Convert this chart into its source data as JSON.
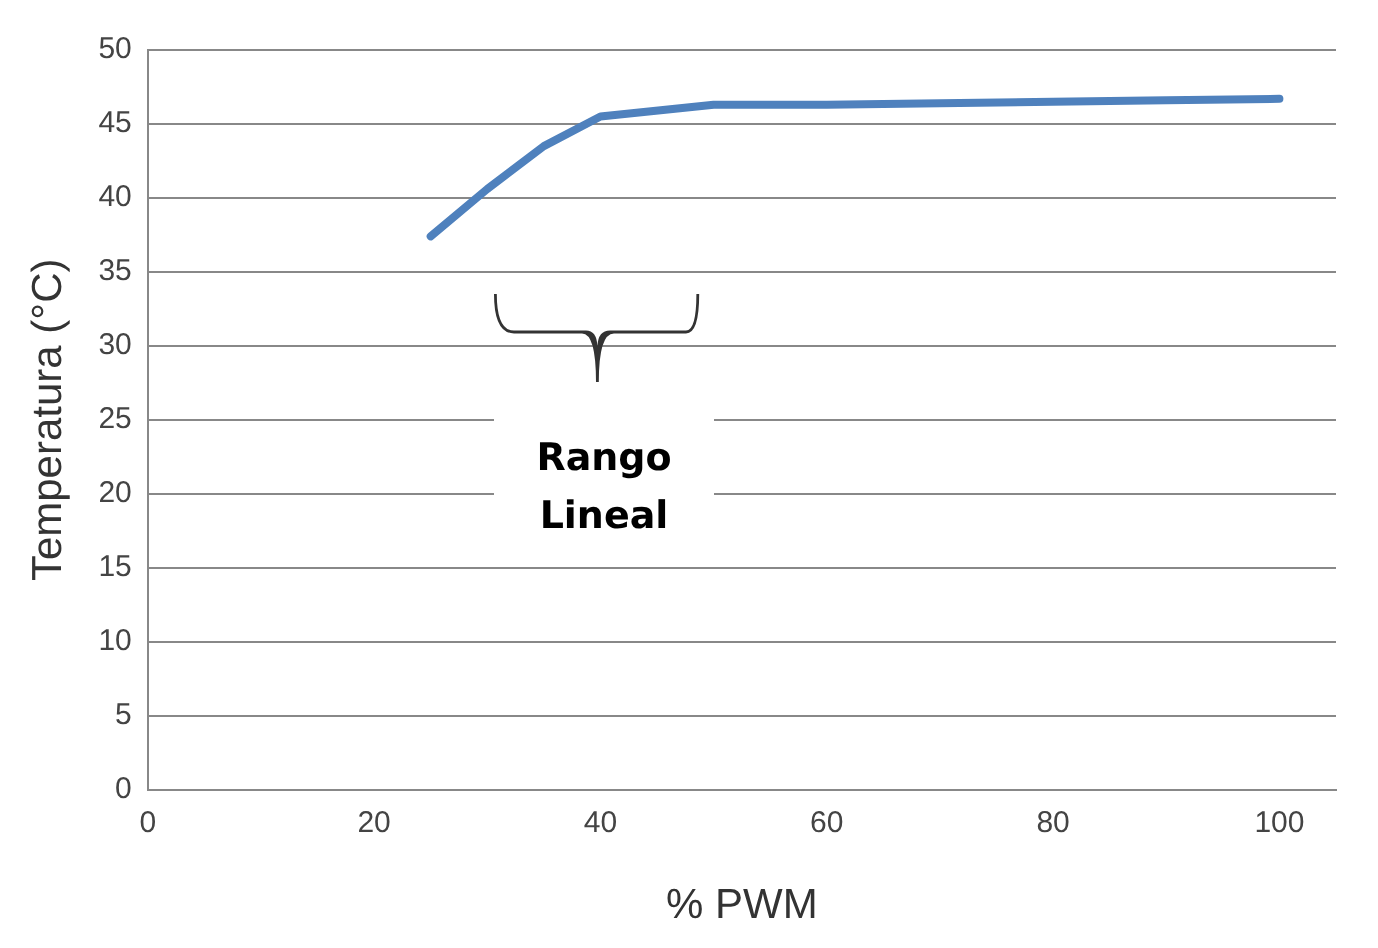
{
  "chart_data": {
    "type": "line",
    "xlabel": "% PWM",
    "ylabel": "Temperatura (°C)",
    "x": [
      25,
      30,
      35,
      40,
      50,
      60,
      70,
      80,
      90,
      100
    ],
    "series": [
      {
        "color": "#4f81bd",
        "values": [
          37.4,
          40.6,
          43.5,
          45.5,
          46.3,
          46.3,
          46.4,
          46.5,
          46.6,
          46.7
        ]
      }
    ],
    "xlim": [
      0,
      105
    ],
    "xticks": [
      0,
      20,
      40,
      60,
      80,
      100
    ],
    "ylim": [
      0,
      50
    ],
    "yticks": [
      0,
      5,
      10,
      15,
      20,
      25,
      30,
      35,
      40,
      45,
      50
    ],
    "grid": "y",
    "legend": false,
    "marker": "none",
    "line_style": "solid",
    "annotations": [
      "Rango Lineal"
    ]
  }
}
